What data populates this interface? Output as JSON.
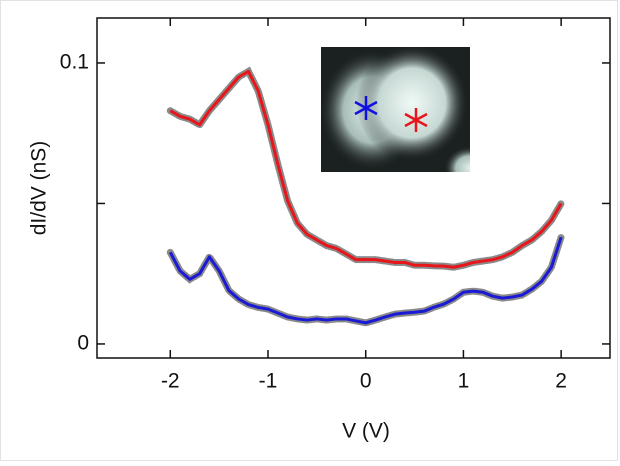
{
  "chart_data": {
    "type": "line",
    "xlabel": "V (V)",
    "ylabel": "dI/dV (nS)",
    "x": [
      -2.0,
      -1.9,
      -1.8,
      -1.7,
      -1.6,
      -1.5,
      -1.4,
      -1.3,
      -1.2,
      -1.1,
      -1.0,
      -0.9,
      -0.8,
      -0.7,
      -0.6,
      -0.5,
      -0.4,
      -0.3,
      -0.2,
      -0.1,
      0.0,
      0.1,
      0.2,
      0.3,
      0.4,
      0.5,
      0.6,
      0.7,
      0.8,
      0.9,
      1.0,
      1.1,
      1.2,
      1.3,
      1.4,
      1.5,
      1.6,
      1.7,
      1.8,
      1.9,
      2.0
    ],
    "series": [
      {
        "color": "#e8151b",
        "values": [
          0.083,
          0.081,
          0.08,
          0.078,
          0.083,
          0.087,
          0.091,
          0.095,
          0.097,
          0.09,
          0.078,
          0.064,
          0.051,
          0.043,
          0.039,
          0.037,
          0.035,
          0.034,
          0.032,
          0.03,
          0.03,
          0.03,
          0.0295,
          0.029,
          0.029,
          0.028,
          0.028,
          0.0278,
          0.0277,
          0.0273,
          0.028,
          0.029,
          0.0295,
          0.03,
          0.031,
          0.0326,
          0.035,
          0.037,
          0.04,
          0.044,
          0.05
        ]
      },
      {
        "color": "#1a1ad6",
        "values": [
          0.0326,
          0.026,
          0.023,
          0.025,
          0.031,
          0.026,
          0.019,
          0.016,
          0.014,
          0.013,
          0.0124,
          0.011,
          0.0096,
          0.0089,
          0.0085,
          0.0089,
          0.0085,
          0.0089,
          0.0089,
          0.0082,
          0.0075,
          0.0085,
          0.0096,
          0.0106,
          0.011,
          0.0113,
          0.0117,
          0.0131,
          0.0142,
          0.016,
          0.0184,
          0.0188,
          0.0184,
          0.017,
          0.0163,
          0.0167,
          0.0174,
          0.0195,
          0.0223,
          0.0273,
          0.038
        ]
      }
    ],
    "xlim": [
      -2.75,
      2.5
    ],
    "xticks": [
      -2,
      -1,
      0,
      1,
      2
    ],
    "ylim": [
      -0.005,
      0.116
    ],
    "yticks": [
      0,
      0.1
    ],
    "yminorticks": [
      0.05
    ]
  }
}
